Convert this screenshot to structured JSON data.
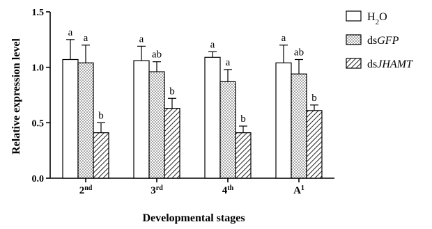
{
  "chart_data": {
    "type": "bar",
    "xlabel": "Developmental stages",
    "ylabel": "Relative expression level",
    "ylim": [
      0,
      1.5
    ],
    "yticks": [
      "0.0",
      "0.5",
      "1.0",
      "1.5"
    ],
    "grid": false,
    "legend_position": "right",
    "categories": [
      {
        "base": "2",
        "sup": "nd"
      },
      {
        "base": "3",
        "sup": "rd"
      },
      {
        "base": "4",
        "sup": "th"
      },
      {
        "base": "A",
        "sup": "1"
      }
    ],
    "series": [
      {
        "name": "H2O",
        "legend": {
          "prefix": "H",
          "sub": "2",
          "suffix": "O",
          "italic": ""
        },
        "pattern": "open",
        "values": [
          1.07,
          1.06,
          1.09,
          1.04
        ],
        "errors": [
          0.18,
          0.13,
          0.05,
          0.16
        ],
        "letters": [
          "a",
          "a",
          "a",
          "a"
        ]
      },
      {
        "name": "dsGFP",
        "legend": {
          "prefix": "ds",
          "sub": "",
          "suffix": "",
          "italic": "GFP"
        },
        "pattern": "dotted",
        "values": [
          1.04,
          0.96,
          0.87,
          0.94
        ],
        "errors": [
          0.16,
          0.09,
          0.11,
          0.13
        ],
        "letters": [
          "a",
          "ab",
          "a",
          "ab"
        ]
      },
      {
        "name": "dsJHAMT",
        "legend": {
          "prefix": "ds",
          "sub": "",
          "suffix": "",
          "italic": "JHAMT"
        },
        "pattern": "hatched",
        "values": [
          0.41,
          0.63,
          0.41,
          0.61
        ],
        "errors": [
          0.09,
          0.09,
          0.06,
          0.05
        ],
        "letters": [
          "b",
          "b",
          "b",
          "b"
        ]
      }
    ]
  }
}
